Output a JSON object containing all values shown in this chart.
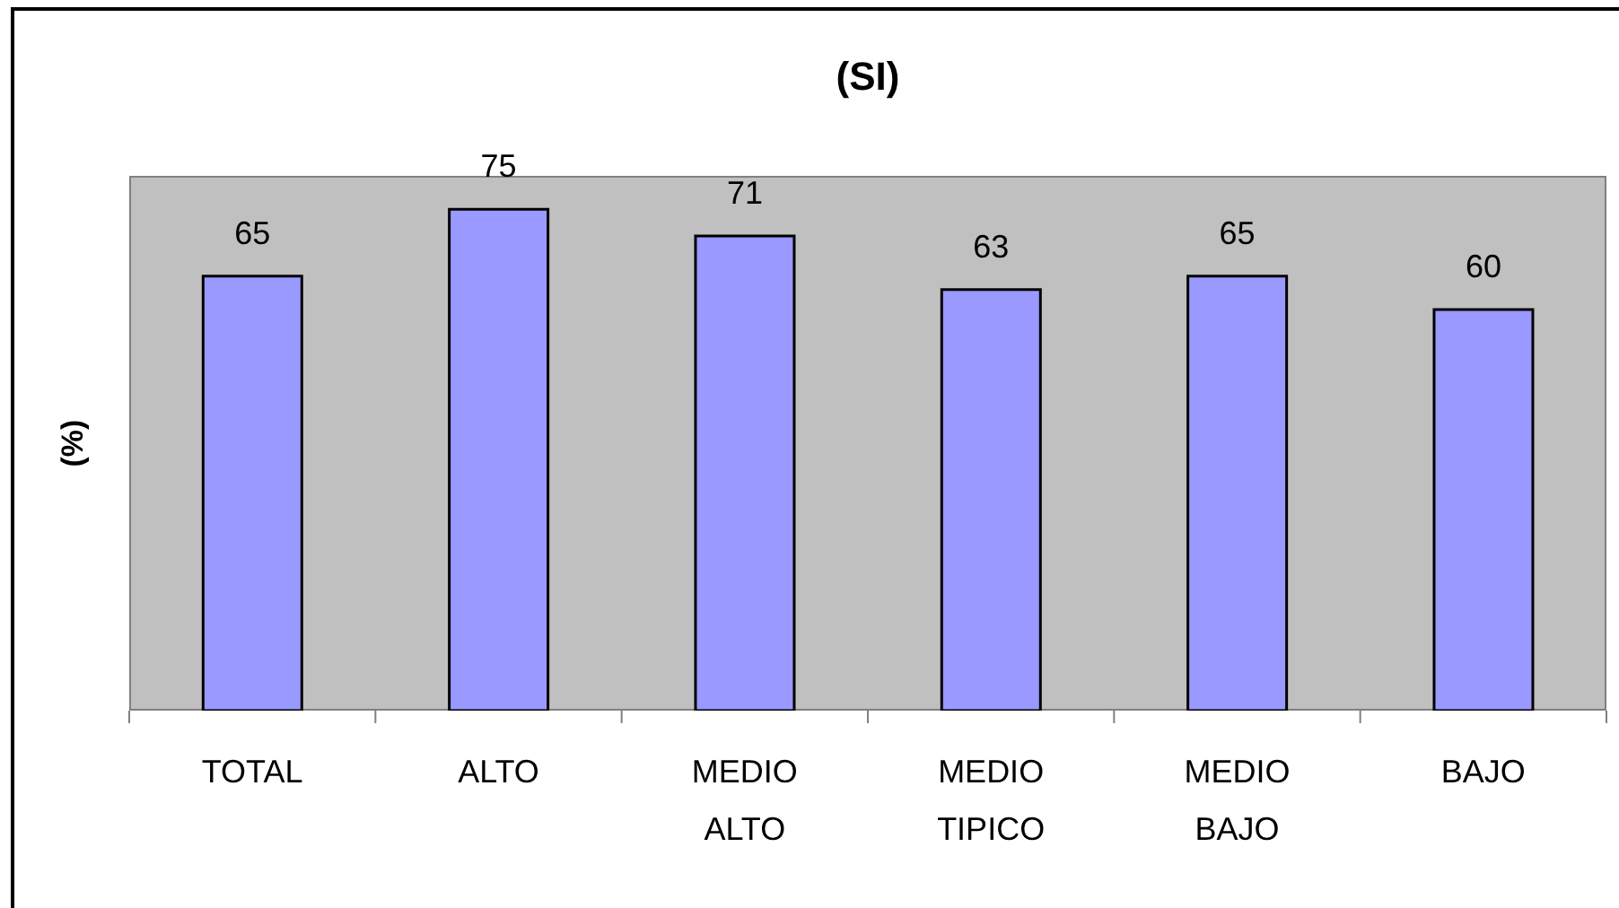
{
  "chart_data": {
    "type": "bar",
    "title": "(SI)",
    "ylabel": "(%)",
    "categories": [
      "TOTAL",
      "ALTO",
      "MEDIO ALTO",
      "MEDIO TIPICO",
      "MEDIO BAJO",
      "BAJO"
    ],
    "values": [
      65,
      75,
      71,
      63,
      65,
      60
    ],
    "color": "#9999ff",
    "ylim": [
      0,
      80
    ],
    "tick_labels": "x",
    "data_labels": true
  }
}
